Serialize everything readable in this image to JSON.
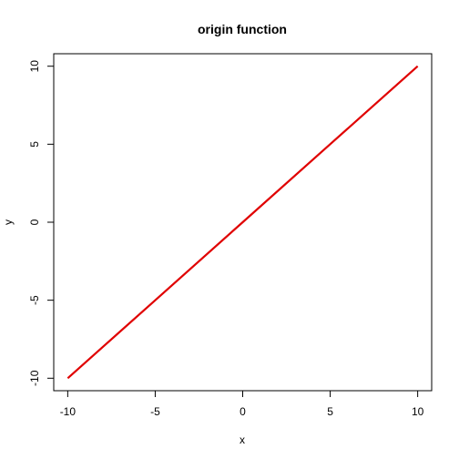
{
  "chart_data": {
    "type": "line",
    "title": "origin function",
    "xlabel": "x",
    "ylabel": "y",
    "xlim": [
      -10.8,
      10.8
    ],
    "ylim": [
      -10.8,
      10.8
    ],
    "x_ticks": [
      -10,
      -5,
      0,
      5,
      10
    ],
    "y_ticks": [
      -10,
      -5,
      0,
      5,
      10
    ],
    "grid": false,
    "series": [
      {
        "color": "#e00000",
        "x": [
          -10,
          -5,
          0,
          5,
          10
        ],
        "y": [
          -10,
          -5,
          0,
          5,
          10
        ]
      }
    ]
  }
}
